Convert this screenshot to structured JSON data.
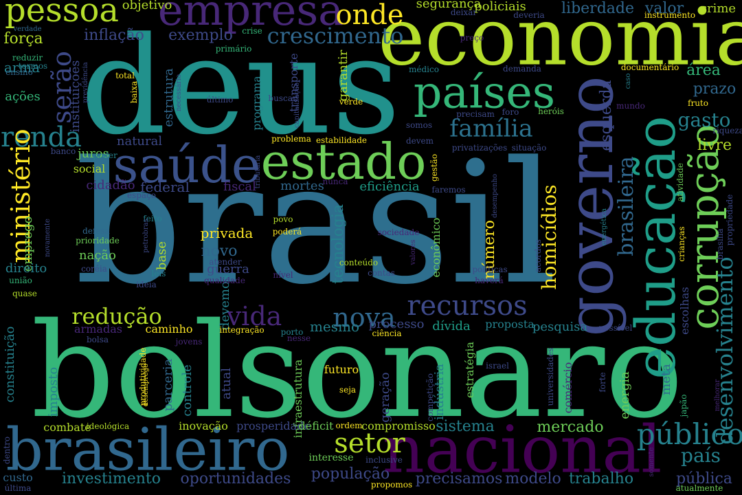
{
  "background_color": "#000000",
  "palette": [
    "#440154",
    "#482878",
    "#3e4989",
    "#31688e",
    "#26828e",
    "#1f9e89",
    "#35b779",
    "#6ece58",
    "#b5de2b",
    "#fde725"
  ],
  "words": [
    {
      "text": "brasil",
      "color": "#2e6f8e",
      "vertical": false
    },
    {
      "text": "bolsonaro",
      "color": "#35b779",
      "vertical": false
    },
    {
      "text": "deus",
      "color": "#21918c",
      "vertical": false
    },
    {
      "text": "economia",
      "color": "#b5de2b",
      "vertical": false
    },
    {
      "text": "governo",
      "color": "#3e4a89",
      "vertical": true
    },
    {
      "text": "nacional",
      "color": "#440154",
      "vertical": false
    },
    {
      "text": "brasileiro",
      "color": "#31688e",
      "vertical": false
    },
    {
      "text": "educação",
      "color": "#1f9e89",
      "vertical": true
    },
    {
      "text": "estado",
      "color": "#6ece58",
      "vertical": false
    },
    {
      "text": "saúde",
      "color": "#3b528b",
      "vertical": false
    },
    {
      "text": "países",
      "color": "#35b779",
      "vertical": false
    },
    {
      "text": "empresa",
      "color": "#482878",
      "vertical": false
    },
    {
      "text": "corrupção",
      "color": "#6ece58",
      "vertical": true
    },
    {
      "text": "pessoa",
      "color": "#b5de2b",
      "vertical": false
    },
    {
      "text": "público",
      "color": "#26828e",
      "vertical": false
    },
    {
      "text": "setor",
      "color": "#b5de2b",
      "vertical": false
    },
    {
      "text": "recursos",
      "color": "#3e4a89",
      "vertical": false
    },
    {
      "text": "nova",
      "color": "#31688e",
      "vertical": false
    },
    {
      "text": "vida",
      "color": "#482878",
      "vertical": false
    },
    {
      "text": "família",
      "color": "#2c728e",
      "vertical": false
    },
    {
      "text": "renda",
      "color": "#26828e",
      "vertical": false
    },
    {
      "text": "onde",
      "color": "#fde725",
      "vertical": false
    },
    {
      "text": "ministério",
      "color": "#fde725",
      "vertical": true
    },
    {
      "text": "serão",
      "color": "#3e4a89",
      "vertical": true
    },
    {
      "text": "crescimento",
      "color": "#31688e",
      "vertical": false
    },
    {
      "text": "redução",
      "color": "#b5de2b",
      "vertical": false
    },
    {
      "text": "desenvolvimento",
      "color": "#26828e",
      "vertical": true
    },
    {
      "text": "homicídios",
      "color": "#fde725",
      "vertical": true
    },
    {
      "text": "brasileira",
      "color": "#31688e",
      "vertical": true
    },
    {
      "text": "país",
      "color": "#26828e",
      "vertical": false
    },
    {
      "text": "gasto",
      "color": "#26828e",
      "vertical": false
    },
    {
      "text": "população",
      "color": "#3e4a89",
      "vertical": false
    },
    {
      "text": "investimento",
      "color": "#26828e",
      "vertical": false
    },
    {
      "text": "oportunidades",
      "color": "#3e4a89",
      "vertical": false
    },
    {
      "text": "pública",
      "color": "#3e4a89",
      "vertical": false
    },
    {
      "text": "trabalho",
      "color": "#26828e",
      "vertical": false
    },
    {
      "text": "precisamos",
      "color": "#3e4a89",
      "vertical": false
    },
    {
      "text": "modelo",
      "color": "#3e4a89",
      "vertical": false
    },
    {
      "text": "mercado",
      "color": "#6ece58",
      "vertical": false
    },
    {
      "text": "sistema",
      "color": "#26828e",
      "vertical": false
    },
    {
      "text": "número",
      "color": "#fde725",
      "vertical": true
    },
    {
      "text": "tecnologia",
      "color": "#26828e",
      "vertical": true
    },
    {
      "text": "esquerda",
      "color": "#3e4a89",
      "vertical": true
    },
    {
      "text": "área",
      "color": "#35b779",
      "vertical": false
    },
    {
      "text": "prazo",
      "color": "#31688e",
      "vertical": false
    },
    {
      "text": "livre",
      "color": "#b5de2b",
      "vertical": false
    },
    {
      "text": "liberdade",
      "color": "#31688e",
      "vertical": false
    },
    {
      "text": "valor",
      "color": "#31688e",
      "vertical": false
    },
    {
      "text": "crime",
      "color": "#b5de2b",
      "vertical": false
    },
    {
      "text": "segurança",
      "color": "#b5de2b",
      "vertical": false
    },
    {
      "text": "policiais",
      "color": "#b5de2b",
      "vertical": false
    },
    {
      "text": "objetivo",
      "color": "#b5de2b",
      "vertical": false
    },
    {
      "text": "exemplo",
      "color": "#3e4a89",
      "vertical": false
    },
    {
      "text": "inflação",
      "color": "#3e4a89",
      "vertical": false
    },
    {
      "text": "força",
      "color": "#b5de2b",
      "vertical": false
    },
    {
      "text": "arma",
      "color": "#26828e",
      "vertical": false
    },
    {
      "text": "ações",
      "color": "#35b779",
      "vertical": false
    },
    {
      "text": "emprego",
      "color": "#6ece58",
      "vertical": true
    },
    {
      "text": "juros",
      "color": "#6ece58",
      "vertical": false
    },
    {
      "text": "natural",
      "color": "#3e4a89",
      "vertical": false
    },
    {
      "text": "social",
      "color": "#b5de2b",
      "vertical": false
    },
    {
      "text": "federal",
      "color": "#3e4a89",
      "vertical": false
    },
    {
      "text": "cidadão",
      "color": "#482878",
      "vertical": false
    },
    {
      "text": "fiscal",
      "color": "#482878",
      "vertical": false
    },
    {
      "text": "mortes",
      "color": "#31688e",
      "vertical": false
    },
    {
      "text": "eficiência",
      "color": "#1f9e89",
      "vertical": false
    },
    {
      "text": "privada",
      "color": "#fde725",
      "vertical": false
    },
    {
      "text": "novo",
      "color": "#31688e",
      "vertical": false
    },
    {
      "text": "guerra",
      "color": "#3e4a89",
      "vertical": false
    },
    {
      "text": "nação",
      "color": "#6ece58",
      "vertical": false
    },
    {
      "text": "direito",
      "color": "#26828e",
      "vertical": false
    },
    {
      "text": "base",
      "color": "#b5de2b",
      "vertical": true
    },
    {
      "text": "caminho",
      "color": "#fde725",
      "vertical": false
    },
    {
      "text": "armadas",
      "color": "#482878",
      "vertical": false
    },
    {
      "text": "mesmo",
      "color": "#26828e",
      "vertical": false
    },
    {
      "text": "processo",
      "color": "#3e4a89",
      "vertical": false
    },
    {
      "text": "dívida",
      "color": "#1f9e89",
      "vertical": false
    },
    {
      "text": "proposta",
      "color": "#26828e",
      "vertical": false
    },
    {
      "text": "pesquisa",
      "color": "#26828e",
      "vertical": false
    },
    {
      "text": "estrutura",
      "color": "#31688e",
      "vertical": true
    },
    {
      "text": "programa",
      "color": "#26828e",
      "vertical": true
    },
    {
      "text": "transporte",
      "color": "#3e4a89",
      "vertical": true
    },
    {
      "text": "garantir",
      "color": "#b5de2b",
      "vertical": true
    },
    {
      "text": "instituições",
      "color": "#3e4a89",
      "vertical": true
    },
    {
      "text": "constituição",
      "color": "#26828e",
      "vertical": true
    },
    {
      "text": "imposto",
      "color": "#26828e",
      "vertical": true
    },
    {
      "text": "parceria",
      "color": "#31688e",
      "vertical": true
    },
    {
      "text": "controle",
      "color": "#26828e",
      "vertical": true
    },
    {
      "text": "devemos",
      "color": "#26828e",
      "vertical": true
    },
    {
      "text": "atual",
      "color": "#3e4a89",
      "vertical": true
    },
    {
      "text": "infraestrutura",
      "color": "#6ece58",
      "vertical": true
    },
    {
      "text": "geração",
      "color": "#3e4a89",
      "vertical": true
    },
    {
      "text": "indústria",
      "color": "#26828e",
      "vertical": true
    },
    {
      "text": "estratégia",
      "color": "#6ece58",
      "vertical": true
    },
    {
      "text": "econômico",
      "color": "#6ece58",
      "vertical": true
    },
    {
      "text": "energia",
      "color": "#6ece58",
      "vertical": true
    },
    {
      "text": "meta",
      "color": "#31688e",
      "vertical": true
    },
    {
      "text": "escolhas",
      "color": "#3e4a89",
      "vertical": true
    },
    {
      "text": "comércio",
      "color": "#482878",
      "vertical": true
    },
    {
      "text": "futuro",
      "color": "#fde725",
      "vertical": false
    },
    {
      "text": "compromisso",
      "color": "#b5de2b",
      "vertical": false
    },
    {
      "text": "combate",
      "color": "#b5de2b",
      "vertical": false
    },
    {
      "text": "inovação",
      "color": "#b5de2b",
      "vertical": false
    },
    {
      "text": "prosperidade",
      "color": "#3e4a89",
      "vertical": false
    },
    {
      "text": "déficit",
      "color": "#6ece58",
      "vertical": false
    },
    {
      "text": "ordem",
      "color": "#fde725",
      "vertical": false
    },
    {
      "text": "interesse",
      "color": "#6ece58",
      "vertical": false
    },
    {
      "text": "custo",
      "color": "#31688e",
      "vertical": false
    },
    {
      "text": "propomos",
      "color": "#fde725",
      "vertical": false
    },
    {
      "text": "primário",
      "color": "#35b779",
      "vertical": false
    },
    {
      "text": "crise",
      "color": "#35b779",
      "vertical": false
    },
    {
      "text": "verdade",
      "color": "#31688e",
      "vertical": false
    },
    {
      "text": "reduzir",
      "color": "#35b779",
      "vertical": false
    },
    {
      "text": "termos",
      "color": "#26828e",
      "vertical": false
    },
    {
      "text": "ensino",
      "color": "#31688e",
      "vertical": false
    },
    {
      "text": "total",
      "color": "#fde725",
      "vertical": false
    },
    {
      "text": "baixa",
      "color": "#fde725",
      "vertical": true
    },
    {
      "text": "buscar",
      "color": "#3e4a89",
      "vertical": false
    },
    {
      "text": "último",
      "color": "#3e4a89",
      "vertical": false
    },
    {
      "text": "problema",
      "color": "#fde725",
      "vertical": false
    },
    {
      "text": "estabilidade",
      "color": "#fde725",
      "vertical": false
    },
    {
      "text": "devem",
      "color": "#3e4a89",
      "vertical": false
    },
    {
      "text": "banco",
      "color": "#3e4a89",
      "vertical": false
    },
    {
      "text": "poder",
      "color": "#26828e",
      "vertical": false
    },
    {
      "text": "espaço",
      "color": "#3e4a89",
      "vertical": false
    },
    {
      "text": "defesa",
      "color": "#31688e",
      "vertical": false
    },
    {
      "text": "prioridade",
      "color": "#6ece58",
      "vertical": false
    },
    {
      "text": "feito",
      "color": "#26828e",
      "vertical": false
    },
    {
      "text": "povo",
      "color": "#b5de2b",
      "vertical": false
    },
    {
      "text": "poderá",
      "color": "#fde725",
      "vertical": false
    },
    {
      "text": "sociedade",
      "color": "#482878",
      "vertical": false
    },
    {
      "text": "atender",
      "color": "#3e4a89",
      "vertical": false
    },
    {
      "text": "conteúdo",
      "color": "#b5de2b",
      "vertical": false
    },
    {
      "text": "contas",
      "color": "#3e4a89",
      "vertical": false
    },
    {
      "text": "qualidade",
      "color": "#482878",
      "vertical": false
    },
    {
      "text": "nível",
      "color": "#482878",
      "vertical": false
    },
    {
      "text": "leis",
      "color": "#26828e",
      "vertical": false
    },
    {
      "text": "coréia",
      "color": "#3e4a89",
      "vertical": false
    },
    {
      "text": "ideia",
      "color": "#3e4a89",
      "vertical": false
    },
    {
      "text": "união",
      "color": "#35b779",
      "vertical": false
    },
    {
      "text": "quase",
      "color": "#b5de2b",
      "vertical": false
    },
    {
      "text": "bolsa",
      "color": "#3e4a89",
      "vertical": false
    },
    {
      "text": "jovens",
      "color": "#482878",
      "vertical": false
    },
    {
      "text": "integração",
      "color": "#fde725",
      "vertical": false
    },
    {
      "text": "porto",
      "color": "#26828e",
      "vertical": false
    },
    {
      "text": "nesse",
      "color": "#482878",
      "vertical": false
    },
    {
      "text": "ciência",
      "color": "#fde725",
      "vertical": false
    },
    {
      "text": "seja",
      "color": "#fde725",
      "vertical": false
    },
    {
      "text": "israel",
      "color": "#3e4a89",
      "vertical": false
    },
    {
      "text": "possível",
      "color": "#3e4a89",
      "vertical": false
    },
    {
      "text": "melhorar",
      "color": "#482878",
      "vertical": true
    },
    {
      "text": "japão",
      "color": "#35b779",
      "vertical": true
    },
    {
      "text": "forte",
      "color": "#3e4a89",
      "vertical": true
    },
    {
      "text": "universidades",
      "color": "#3e4a89",
      "vertical": true
    },
    {
      "text": "competição",
      "color": "#3e4a89",
      "vertical": true
    },
    {
      "text": "produtividade",
      "color": "#fde725",
      "vertical": true
    },
    {
      "text": "desemprego",
      "color": "#fde725",
      "vertical": true
    },
    {
      "text": "ideológica",
      "color": "#b5de2b",
      "vertical": false
    },
    {
      "text": "inclusive",
      "color": "#3e4a89",
      "vertical": false
    },
    {
      "text": "dentro",
      "color": "#3e4a89",
      "vertical": true
    },
    {
      "text": "última",
      "color": "#3e4a89",
      "vertical": false
    },
    {
      "text": "somente",
      "color": "#482878",
      "vertical": true
    },
    {
      "text": "atualmente",
      "color": "#6ece58",
      "vertical": false
    },
    {
      "text": "deixar",
      "color": "#3e4a89",
      "vertical": false
    },
    {
      "text": "deveria",
      "color": "#3e4a89",
      "vertical": false
    },
    {
      "text": "instrumento",
      "color": "#fde725",
      "vertical": false
    },
    {
      "text": "preço",
      "color": "#482878",
      "vertical": false
    },
    {
      "text": "médico",
      "color": "#26828e",
      "vertical": false
    },
    {
      "text": "demanda",
      "color": "#3e4a89",
      "vertical": false
    },
    {
      "text": "documentário",
      "color": "#fde725",
      "vertical": false
    },
    {
      "text": "caso",
      "color": "#26828e",
      "vertical": true
    },
    {
      "text": "mundo",
      "color": "#482878",
      "vertical": false
    },
    {
      "text": "fruto",
      "color": "#fde725",
      "vertical": false
    },
    {
      "text": "foro",
      "color": "#3e4a89",
      "vertical": false
    },
    {
      "text": "heróis",
      "color": "#6ece58",
      "vertical": false
    },
    {
      "text": "precisam",
      "color": "#3e4a89",
      "vertical": false
    },
    {
      "text": "somos",
      "color": "#3e4a89",
      "vertical": false
    },
    {
      "text": "riqueza",
      "color": "#3e4a89",
      "vertical": false
    },
    {
      "text": "privatizações",
      "color": "#3e4a89",
      "vertical": false
    },
    {
      "text": "situação",
      "color": "#3e4a89",
      "vertical": false
    },
    {
      "text": "gestão",
      "color": "#fde725",
      "vertical": true
    },
    {
      "text": "nunca",
      "color": "#482878",
      "vertical": false
    },
    {
      "text": "faremos",
      "color": "#3e4a89",
      "vertical": false
    },
    {
      "text": "desempenho",
      "color": "#3e4a89",
      "vertical": true
    },
    {
      "text": "tributária",
      "color": "#3e4a89",
      "vertical": true
    },
    {
      "text": "capitalização",
      "color": "#3e4a89",
      "vertical": true
    },
    {
      "text": "verde",
      "color": "#fde725",
      "vertical": false
    },
    {
      "text": "previdência",
      "color": "#3e4a89",
      "vertical": true
    },
    {
      "text": "necessário",
      "color": "#3e4a89",
      "vertical": true
    },
    {
      "text": "atividade",
      "color": "#6ece58",
      "vertical": true
    },
    {
      "text": "energética",
      "color": "#26828e",
      "vertical": true
    },
    {
      "text": "crianças",
      "color": "#fde725",
      "vertical": true
    },
    {
      "text": "propriedade",
      "color": "#3e4a89",
      "vertical": true
    },
    {
      "text": "brasília",
      "color": "#3e4a89",
      "vertical": true
    },
    {
      "text": "acordos",
      "color": "#3e4a89",
      "vertical": true
    },
    {
      "text": "valores",
      "color": "#482878",
      "vertical": true
    },
    {
      "text": "políticas",
      "color": "#3e4a89",
      "vertical": false
    },
    {
      "text": "haverá",
      "color": "#482878",
      "vertical": false
    },
    {
      "text": "novamente",
      "color": "#3e4a89",
      "vertical": true
    },
    {
      "text": "petrobras",
      "color": "#3e4a89",
      "vertical": true
    }
  ]
}
